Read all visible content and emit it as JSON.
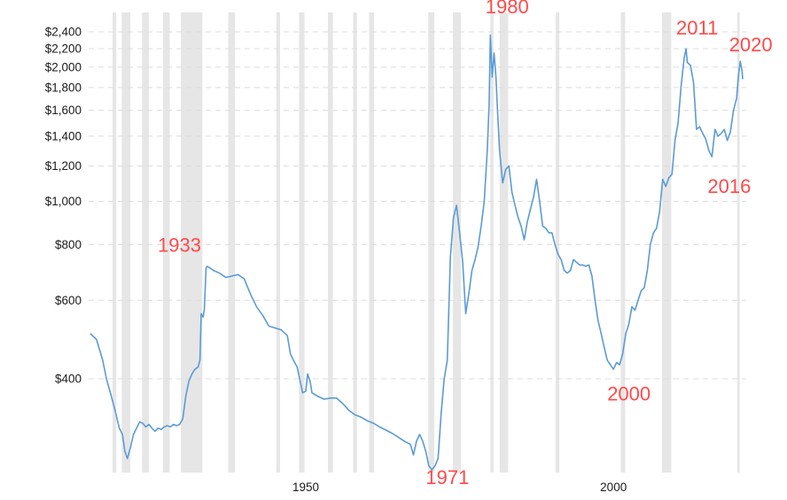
{
  "chart_data": {
    "type": "line",
    "title": "",
    "xlabel": "",
    "ylabel": "",
    "y_scale": "log",
    "grid": true,
    "ylim": [
      245,
      2550
    ],
    "xlim": [
      1915,
      2021
    ],
    "y_ticks": [
      {
        "value": 400,
        "label": "$400"
      },
      {
        "value": 600,
        "label": "$600"
      },
      {
        "value": 800,
        "label": "$800"
      },
      {
        "value": 1000,
        "label": "$1,000"
      },
      {
        "value": 1200,
        "label": "$1,200"
      },
      {
        "value": 1400,
        "label": "$1,400"
      },
      {
        "value": 1600,
        "label": "$1,600"
      },
      {
        "value": 1800,
        "label": "$1,800"
      },
      {
        "value": 2000,
        "label": "$2,000"
      },
      {
        "value": 2200,
        "label": "$2,200"
      },
      {
        "value": 2400,
        "label": "$2,400"
      }
    ],
    "x_ticks": [
      {
        "value": 1950,
        "label": "1950"
      },
      {
        "value": 2000,
        "label": "2000"
      }
    ],
    "recession_bands": [
      [
        1918.6,
        1919.2
      ],
      [
        1920.1,
        1921.5
      ],
      [
        1923.4,
        1924.5
      ],
      [
        1926.8,
        1927.9
      ],
      [
        1929.7,
        1933.2
      ],
      [
        1937.4,
        1938.5
      ],
      [
        1945.2,
        1945.8
      ],
      [
        1948.9,
        1949.8
      ],
      [
        1953.6,
        1954.4
      ],
      [
        1957.7,
        1958.3
      ],
      [
        1960.3,
        1961.1
      ],
      [
        1969.9,
        1970.9
      ],
      [
        1973.9,
        1975.2
      ],
      [
        1980.0,
        1980.5
      ],
      [
        1981.5,
        1982.9
      ],
      [
        1990.6,
        1991.2
      ],
      [
        2001.2,
        2001.9
      ],
      [
        2007.9,
        2009.4
      ],
      [
        2020.1,
        2020.5
      ]
    ],
    "series": [
      {
        "color": "#5b9bd5",
        "points": [
          [
            1915.0,
            505
          ],
          [
            1916.0,
            490
          ],
          [
            1917.0,
            440
          ],
          [
            1917.6,
            400
          ],
          [
            1918.3,
            370
          ],
          [
            1919.0,
            340
          ],
          [
            1919.7,
            310
          ],
          [
            1920.2,
            300
          ],
          [
            1920.6,
            275
          ],
          [
            1921.0,
            265
          ],
          [
            1921.5,
            280
          ],
          [
            1922.0,
            300
          ],
          [
            1922.5,
            310
          ],
          [
            1923.0,
            320
          ],
          [
            1923.5,
            318
          ],
          [
            1924.0,
            312
          ],
          [
            1924.5,
            316
          ],
          [
            1925.0,
            310
          ],
          [
            1925.5,
            305
          ],
          [
            1926.0,
            310
          ],
          [
            1926.5,
            308
          ],
          [
            1927.0,
            312
          ],
          [
            1927.5,
            314
          ],
          [
            1928.0,
            312
          ],
          [
            1928.5,
            316
          ],
          [
            1929.0,
            314
          ],
          [
            1929.5,
            316
          ],
          [
            1930.0,
            325
          ],
          [
            1930.5,
            365
          ],
          [
            1931.0,
            395
          ],
          [
            1931.5,
            410
          ],
          [
            1932.0,
            420
          ],
          [
            1932.5,
            425
          ],
          [
            1932.8,
            440
          ],
          [
            1933.0,
            560
          ],
          [
            1933.3,
            550
          ],
          [
            1933.5,
            570
          ],
          [
            1933.8,
            710
          ],
          [
            1934.0,
            715
          ],
          [
            1935.0,
            700
          ],
          [
            1936.0,
            690
          ],
          [
            1937.0,
            675
          ],
          [
            1938.0,
            680
          ],
          [
            1939.0,
            685
          ],
          [
            1940.0,
            670
          ],
          [
            1941.0,
            620
          ],
          [
            1942.0,
            580
          ],
          [
            1943.0,
            555
          ],
          [
            1944.0,
            525
          ],
          [
            1945.0,
            520
          ],
          [
            1946.0,
            515
          ],
          [
            1947.0,
            500
          ],
          [
            1947.5,
            455
          ],
          [
            1948.0,
            440
          ],
          [
            1948.6,
            425
          ],
          [
            1949.0,
            400
          ],
          [
            1949.5,
            372
          ],
          [
            1950.0,
            375
          ],
          [
            1950.3,
            410
          ],
          [
            1950.7,
            395
          ],
          [
            1951.0,
            372
          ],
          [
            1952.0,
            365
          ],
          [
            1953.0,
            360
          ],
          [
            1954.0,
            362
          ],
          [
            1955.0,
            362
          ],
          [
            1956.0,
            352
          ],
          [
            1957.0,
            340
          ],
          [
            1958.0,
            332
          ],
          [
            1959.0,
            328
          ],
          [
            1960.0,
            322
          ],
          [
            1961.0,
            318
          ],
          [
            1962.0,
            312
          ],
          [
            1963.0,
            307
          ],
          [
            1964.0,
            302
          ],
          [
            1965.0,
            296
          ],
          [
            1966.0,
            290
          ],
          [
            1967.0,
            285
          ],
          [
            1967.5,
            270
          ],
          [
            1968.0,
            290
          ],
          [
            1968.5,
            300
          ],
          [
            1969.0,
            290
          ],
          [
            1969.5,
            275
          ],
          [
            1970.0,
            255
          ],
          [
            1970.5,
            250
          ],
          [
            1971.0,
            255
          ],
          [
            1971.5,
            265
          ],
          [
            1972.0,
            335
          ],
          [
            1972.5,
            400
          ],
          [
            1973.0,
            440
          ],
          [
            1973.5,
            750
          ],
          [
            1974.0,
            920
          ],
          [
            1974.5,
            980
          ],
          [
            1975.0,
            850
          ],
          [
            1975.5,
            730
          ],
          [
            1976.0,
            560
          ],
          [
            1976.5,
            620
          ],
          [
            1977.0,
            700
          ],
          [
            1977.5,
            740
          ],
          [
            1978.0,
            790
          ],
          [
            1978.5,
            880
          ],
          [
            1979.0,
            1000
          ],
          [
            1979.5,
            1300
          ],
          [
            1979.8,
            1650
          ],
          [
            1980.0,
            2360
          ],
          [
            1980.3,
            1900
          ],
          [
            1980.6,
            2150
          ],
          [
            1980.9,
            1900
          ],
          [
            1981.2,
            1550
          ],
          [
            1981.5,
            1300
          ],
          [
            1982.0,
            1100
          ],
          [
            1982.5,
            1180
          ],
          [
            1983.0,
            1200
          ],
          [
            1983.5,
            1050
          ],
          [
            1984.0,
            980
          ],
          [
            1984.5,
            920
          ],
          [
            1985.0,
            880
          ],
          [
            1985.5,
            820
          ],
          [
            1986.0,
            900
          ],
          [
            1986.5,
            960
          ],
          [
            1987.0,
            1020
          ],
          [
            1987.5,
            1120
          ],
          [
            1988.0,
            1000
          ],
          [
            1988.5,
            880
          ],
          [
            1989.0,
            870
          ],
          [
            1989.5,
            850
          ],
          [
            1990.0,
            850
          ],
          [
            1990.5,
            800
          ],
          [
            1991.0,
            760
          ],
          [
            1991.5,
            740
          ],
          [
            1992.0,
            700
          ],
          [
            1992.5,
            690
          ],
          [
            1993.0,
            700
          ],
          [
            1993.5,
            740
          ],
          [
            1994.0,
            730
          ],
          [
            1994.5,
            720
          ],
          [
            1995.0,
            720
          ],
          [
            1995.5,
            715
          ],
          [
            1996.0,
            720
          ],
          [
            1996.5,
            680
          ],
          [
            1997.0,
            600
          ],
          [
            1997.5,
            540
          ],
          [
            1998.0,
            505
          ],
          [
            1998.5,
            470
          ],
          [
            1999.0,
            440
          ],
          [
            1999.5,
            430
          ],
          [
            2000.0,
            420
          ],
          [
            2000.5,
            435
          ],
          [
            2001.0,
            430
          ],
          [
            2001.5,
            455
          ],
          [
            2002.0,
            505
          ],
          [
            2002.5,
            530
          ],
          [
            2003.0,
            580
          ],
          [
            2003.5,
            570
          ],
          [
            2004.0,
            600
          ],
          [
            2004.5,
            630
          ],
          [
            2005.0,
            640
          ],
          [
            2005.5,
            700
          ],
          [
            2006.0,
            800
          ],
          [
            2006.5,
            850
          ],
          [
            2007.0,
            870
          ],
          [
            2007.5,
            950
          ],
          [
            2008.0,
            1120
          ],
          [
            2008.5,
            1080
          ],
          [
            2009.0,
            1130
          ],
          [
            2009.5,
            1150
          ],
          [
            2010.0,
            1370
          ],
          [
            2010.5,
            1500
          ],
          [
            2011.0,
            1820
          ],
          [
            2011.5,
            2100
          ],
          [
            2011.8,
            2200
          ],
          [
            2012.0,
            2050
          ],
          [
            2012.5,
            2020
          ],
          [
            2013.0,
            1850
          ],
          [
            2013.5,
            1450
          ],
          [
            2014.0,
            1470
          ],
          [
            2014.5,
            1420
          ],
          [
            2015.0,
            1380
          ],
          [
            2015.5,
            1300
          ],
          [
            2016.0,
            1260
          ],
          [
            2016.5,
            1450
          ],
          [
            2017.0,
            1400
          ],
          [
            2017.5,
            1420
          ],
          [
            2018.0,
            1450
          ],
          [
            2018.5,
            1370
          ],
          [
            2019.0,
            1430
          ],
          [
            2019.5,
            1600
          ],
          [
            2020.0,
            1700
          ],
          [
            2020.3,
            1900
          ],
          [
            2020.6,
            2060
          ],
          [
            2020.9,
            1960
          ],
          [
            2021.0,
            1880
          ]
        ]
      }
    ],
    "annotations": [
      {
        "label": "1933",
        "color": "#ff4a4a",
        "x": 1933.0,
        "y": 770,
        "anchor": "end"
      },
      {
        "label": "1980",
        "color": "#ff4a4a",
        "x": 1979.2,
        "y": 2640,
        "anchor": "start"
      },
      {
        "label": "1971",
        "color": "#ff4a4a",
        "x": 1969.5,
        "y": 232,
        "anchor": "start"
      },
      {
        "label": "2011",
        "color": "#ff4a4a",
        "x": 2010.2,
        "y": 2370,
        "anchor": "start"
      },
      {
        "label": "2020",
        "color": "#ff4a4a",
        "x": 2018.8,
        "y": 2170,
        "anchor": "start"
      },
      {
        "label": "2016",
        "color": "#ff4a4a",
        "x": 2015.3,
        "y": 1045,
        "anchor": "start"
      },
      {
        "label": "2000",
        "color": "#ff4a4a",
        "x": 1999.0,
        "y": 358,
        "anchor": "start"
      }
    ]
  }
}
